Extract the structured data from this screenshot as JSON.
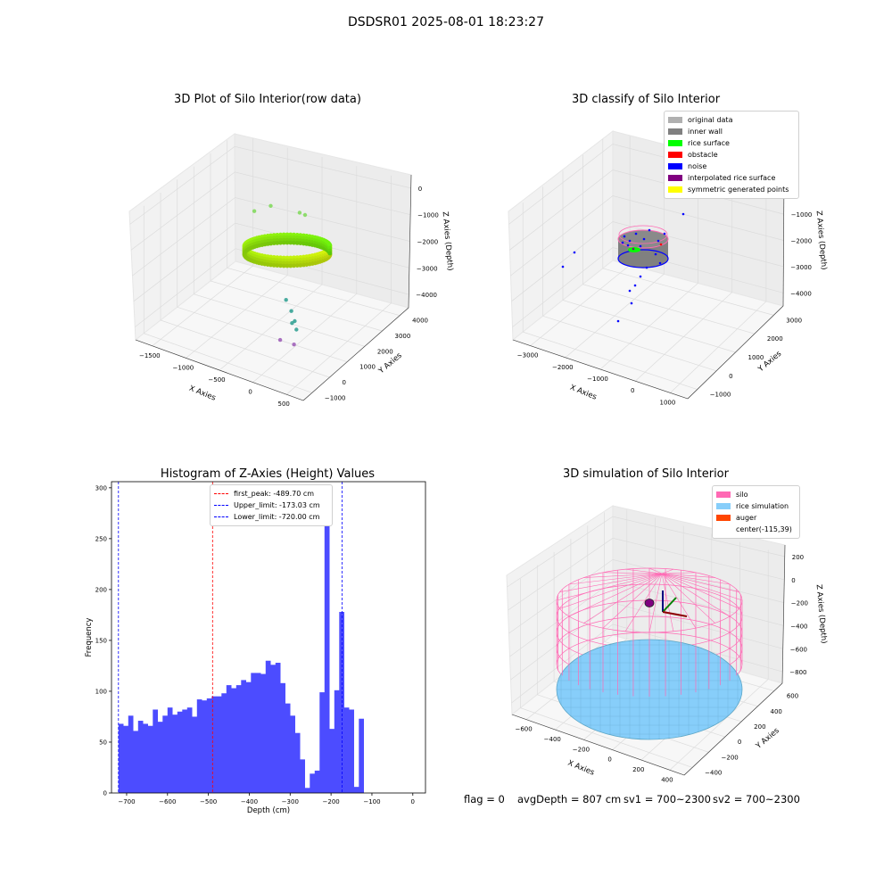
{
  "suptitle": "DSDSR01 2025-08-01 18:23:27",
  "footer": {
    "flag": "flag = 0",
    "avg": "avgDepth = 807 cm",
    "sv1": "sv1 = 700~2300",
    "sv2": "sv2 = 700~2300"
  },
  "colors": {
    "hist_bar": "#4c4cff",
    "first_peak": "#ff0000",
    "limit": "#0000ff",
    "silo": "#ff69b4",
    "rice": "#87cefa",
    "auger": "#ff4500"
  },
  "chart_data": [
    {
      "type": "scatter",
      "title": "3D Plot of Silo Interior(row data)",
      "xlabel": "X Axies",
      "ylabel": "Y Axies",
      "zlabel": "Z Axies (Depth)",
      "x_ticks": [
        "−1500",
        "−1000",
        "−500",
        "0",
        "500"
      ],
      "y_ticks": [
        "−1000",
        "0",
        "1000",
        "2000",
        "3000",
        "4000"
      ],
      "z_ticks": [
        "0",
        "−1000",
        "−2000",
        "−3000",
        "−4000"
      ],
      "xlim": [
        -1800,
        550
      ],
      "ylim": [
        -1300,
        4300
      ],
      "zlim": [
        -4600,
        200
      ],
      "points": [
        {
          "x": -1250,
          "y": 3800,
          "z": -2300
        },
        {
          "x": -1400,
          "y": 3500,
          "z": -2450
        },
        {
          "x": -400,
          "y": 2400,
          "z": -1000
        },
        {
          "x": -450,
          "y": 2300,
          "z": -900
        },
        {
          "x": -150,
          "y": 900,
          "z": -3700
        },
        {
          "x": -200,
          "y": 950,
          "z": -3850
        },
        {
          "x": -250,
          "y": 1100,
          "z": -3550
        },
        {
          "x": -100,
          "y": 800,
          "z": -3900
        },
        {
          "x": -300,
          "y": 700,
          "z": -4400
        },
        {
          "x": -80,
          "y": 600,
          "z": -4300
        },
        {
          "x": -350,
          "y": 1200,
          "z": -3300
        }
      ],
      "ring": {
        "center_x": -115,
        "center_y": 1200,
        "radius": 1150,
        "z": -800
      }
    },
    {
      "type": "scatter",
      "title": "3D classify of Silo Interior",
      "xlabel": "X Axies",
      "ylabel": "Y Axies",
      "zlabel": "Z Axies (Depth)",
      "x_ticks": [
        "−3000",
        "−2000",
        "−1000",
        "0",
        "1000"
      ],
      "y_ticks": [
        "−1000",
        "0",
        "1000",
        "2000",
        "3000"
      ],
      "z_ticks": [
        "0",
        "−1000",
        "−2000",
        "−3000",
        "−4000"
      ],
      "legend": [
        "original data",
        "inner wall",
        "rice surface",
        "obstacle",
        "noise",
        "interpolated rice surface",
        "symmetric generated points"
      ],
      "legend_colors": [
        "#b0b0b0",
        "#808080",
        "#00ff00",
        "#ff0000",
        "#0000ff",
        "#800080",
        "#ffff00"
      ]
    },
    {
      "type": "bar",
      "title": "Histogram of Z-Axies (Height) Values",
      "xlabel": "Depth (cm)",
      "ylabel": "Frequency",
      "xlim": [
        -737,
        31
      ],
      "ylim": [
        0,
        306
      ],
      "x_ticks": [
        "−700",
        "−600",
        "−500",
        "−400",
        "−300",
        "−200",
        "−100",
        "0"
      ],
      "y_ticks": [
        "0",
        "50",
        "100",
        "150",
        "200",
        "250",
        "300"
      ],
      "bin_start": -720,
      "bin_width": 12,
      "values": [
        68,
        66,
        76,
        61,
        71,
        68,
        66,
        82,
        70,
        76,
        84,
        77,
        80,
        82,
        84,
        75,
        92,
        91,
        93,
        95,
        95,
        98,
        106,
        103,
        106,
        111,
        109,
        118,
        118,
        117,
        130,
        126,
        128,
        108,
        88,
        76,
        59,
        33,
        5,
        19,
        22,
        99,
        292,
        63,
        101,
        178,
        84,
        82,
        6,
        73
      ],
      "vlines": [
        {
          "label": "first_peak: -489.70 cm",
          "x": -489.7
        },
        {
          "label": "Upper_limit: -173.03 cm",
          "x": -173.03
        },
        {
          "label": "Lower_limit: -720.00 cm",
          "x": -720.0
        }
      ]
    },
    {
      "type": "scatter",
      "title": "3D simulation of Silo Interior",
      "xlabel": "X Axies",
      "ylabel": "Y Axies",
      "zlabel": "Z Axies (Depth)",
      "x_ticks": [
        "−600",
        "−400",
        "−200",
        "0",
        "200",
        "400"
      ],
      "y_ticks": [
        "−400",
        "−200",
        "0",
        "200",
        "400",
        "600"
      ],
      "z_ticks": [
        "200",
        "0",
        "−200",
        "−400",
        "−600",
        "−800"
      ],
      "legend": [
        "silo",
        "rice simulation",
        "auger",
        "center(-115,39)"
      ],
      "silo": {
        "center_x": -115,
        "center_y": 39,
        "radius": 560,
        "z_top": 0,
        "z_bottom": -800
      },
      "rice_surface_z": -807
    }
  ]
}
